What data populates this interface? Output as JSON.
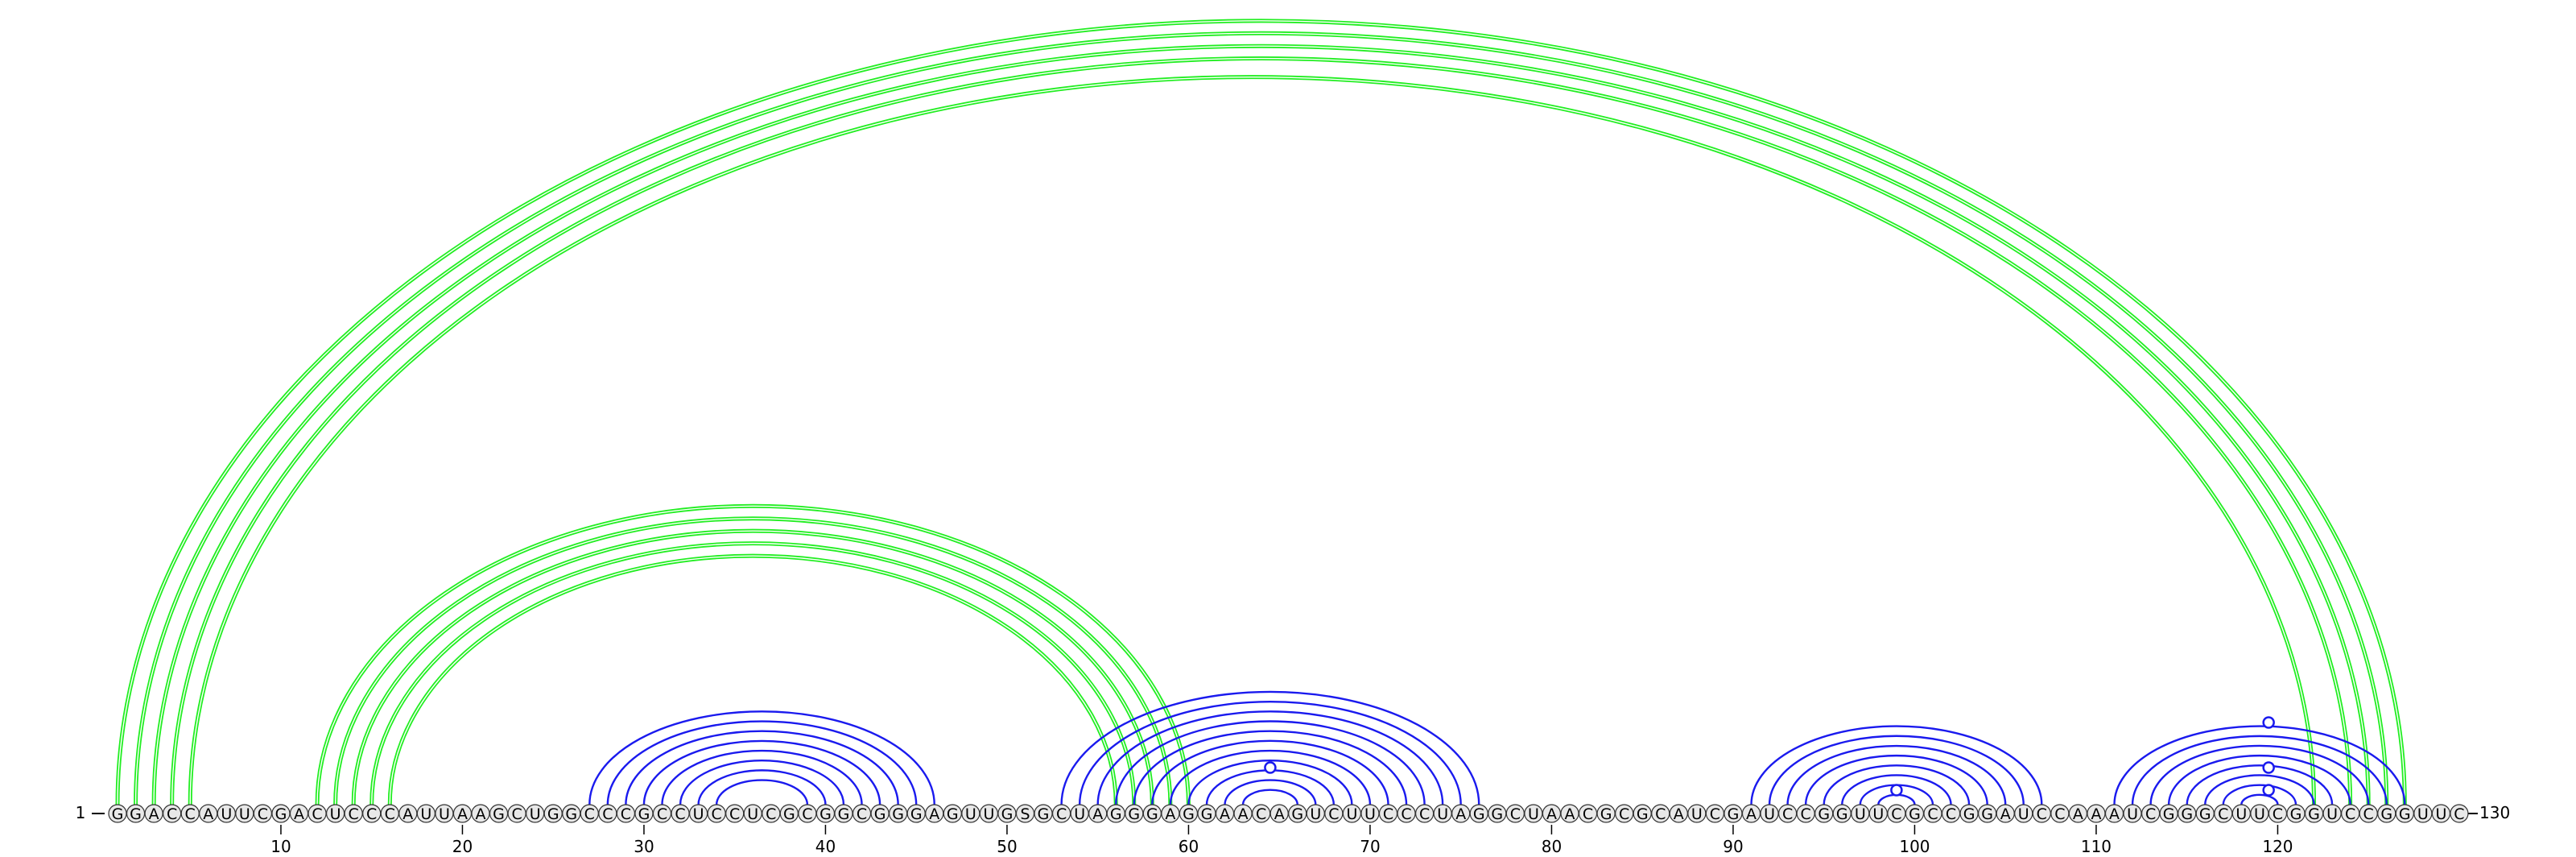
{
  "sequence": "GGACCAUUCGACUCCCAUUAAGCUGGCCCGCCUCCUCGCGGCGGGAGUUGSGCUAGGGAGGAACAGUCUUCCCUAGGCUAACGCGCAUCGAUCCGGUUCGCCGGAUCCAAAUCGGGCUUCGGUCCGGUUC",
  "start_label": "1",
  "end_label": "130",
  "ticks": [
    10,
    20,
    30,
    40,
    50,
    60,
    70,
    80,
    90,
    100,
    110,
    120
  ],
  "colors": {
    "pseudoknot": "#22ee22",
    "helix": "#1a1aee",
    "text": "#000000",
    "circle_fill": "#e8e8e8"
  },
  "chart_data": {
    "type": "arc",
    "pseudoknot_pairs": [
      [
        1,
        127
      ],
      [
        2,
        126
      ],
      [
        3,
        125
      ],
      [
        4,
        124
      ],
      [
        5,
        122
      ],
      [
        12,
        60
      ],
      [
        13,
        59
      ],
      [
        14,
        58
      ],
      [
        15,
        57
      ],
      [
        16,
        56
      ]
    ],
    "helix_pairs": [
      [
        27,
        46
      ],
      [
        28,
        45
      ],
      [
        29,
        44
      ],
      [
        30,
        43
      ],
      [
        31,
        42
      ],
      [
        32,
        41
      ],
      [
        33,
        40
      ],
      [
        34,
        39
      ],
      [
        53,
        76
      ],
      [
        54,
        75
      ],
      [
        55,
        74
      ],
      [
        56,
        73
      ],
      [
        57,
        72
      ],
      [
        58,
        71
      ],
      [
        59,
        70
      ],
      [
        60,
        69
      ],
      [
        61,
        68
      ],
      [
        62,
        67
      ],
      [
        63,
        66
      ],
      [
        91,
        107
      ],
      [
        92,
        106
      ],
      [
        93,
        105
      ],
      [
        94,
        104
      ],
      [
        95,
        103
      ],
      [
        96,
        102
      ],
      [
        97,
        101
      ],
      [
        98,
        100
      ],
      [
        111,
        127
      ],
      [
        112,
        126
      ],
      [
        113,
        125
      ],
      [
        114,
        124
      ],
      [
        115,
        123
      ],
      [
        116,
        122
      ],
      [
        117,
        121
      ],
      [
        118,
        120
      ]
    ],
    "markers": [
      {
        "pos": 64.5,
        "level": 3
      },
      {
        "pos": 99,
        "level": 1
      },
      {
        "pos": 119.5,
        "level": 1
      },
      {
        "pos": 119.5,
        "level": 3
      },
      {
        "pos": 119.5,
        "level": 7
      }
    ]
  }
}
